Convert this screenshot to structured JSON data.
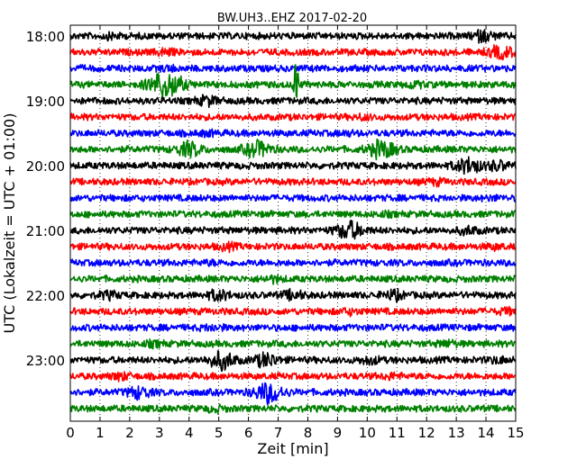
{
  "chart_data": {
    "type": "line",
    "title": "BW.UH3..EHZ 2017-02-20",
    "xlabel": "Zeit  [min]",
    "ylabel": "UTC (Lokalzeit = UTC + 01:00)",
    "xlim": [
      0,
      15
    ],
    "x_ticks": [
      "0",
      "1",
      "2",
      "3",
      "4",
      "5",
      "6",
      "7",
      "8",
      "9",
      "10",
      "11",
      "12",
      "13",
      "14",
      "15"
    ],
    "y_ticks": [
      "18:00",
      "19:00",
      "20:00",
      "21:00",
      "22:00",
      "23:00"
    ],
    "line_interval_minutes": 15,
    "start_time": "18:00",
    "end_time": "24:00",
    "grid": "vertical dotted",
    "trace_colors": [
      "#000000",
      "#ff0000",
      "#0000ff",
      "#008000"
    ],
    "traces": [
      {
        "start": "18:00",
        "color": "#000000",
        "events": [
          {
            "t": 1.4,
            "a": 1.5
          },
          {
            "t": 13.9,
            "a": 2.2
          }
        ]
      },
      {
        "start": "18:15",
        "color": "#ff0000",
        "events": [
          {
            "t": 3.2,
            "a": 1.6
          },
          {
            "t": 14.5,
            "a": 2.5
          }
        ]
      },
      {
        "start": "18:30",
        "color": "#0000ff",
        "events": [
          {
            "t": 3.3,
            "a": 1.4
          }
        ]
      },
      {
        "start": "18:45",
        "color": "#008000",
        "events": [
          {
            "t": 3.2,
            "a": 4.5
          },
          {
            "t": 7.6,
            "a": 9.0
          },
          {
            "t": 11.6,
            "a": 1.6
          }
        ]
      },
      {
        "start": "19:00",
        "color": "#000000",
        "events": [
          {
            "t": 4.6,
            "a": 2.0
          }
        ]
      },
      {
        "start": "19:15",
        "color": "#ff0000",
        "events": [
          {
            "t": 9.9,
            "a": 1.4
          }
        ]
      },
      {
        "start": "19:30",
        "color": "#0000ff",
        "events": [
          {
            "t": 4.6,
            "a": 1.4
          },
          {
            "t": 9.3,
            "a": 1.3
          }
        ]
      },
      {
        "start": "19:45",
        "color": "#008000",
        "events": [
          {
            "t": 4.0,
            "a": 2.8
          },
          {
            "t": 6.3,
            "a": 3.0
          },
          {
            "t": 10.5,
            "a": 3.2
          }
        ]
      },
      {
        "start": "20:00",
        "color": "#000000",
        "events": [
          {
            "t": 13.4,
            "a": 3.0
          },
          {
            "t": 14.4,
            "a": 2.0
          }
        ]
      },
      {
        "start": "20:15",
        "color": "#ff0000",
        "events": [
          {
            "t": 12.3,
            "a": 1.5
          }
        ]
      },
      {
        "start": "20:30",
        "color": "#0000ff",
        "events": [
          {
            "t": 14.2,
            "a": 1.3
          }
        ]
      },
      {
        "start": "20:45",
        "color": "#008000",
        "events": [
          {
            "t": 10.6,
            "a": 1.3
          }
        ]
      },
      {
        "start": "21:00",
        "color": "#000000",
        "events": [
          {
            "t": 9.4,
            "a": 3.2
          },
          {
            "t": 13.4,
            "a": 1.8
          }
        ]
      },
      {
        "start": "21:15",
        "color": "#ff0000",
        "events": [
          {
            "t": 5.3,
            "a": 1.6
          },
          {
            "t": 14.3,
            "a": 1.4
          }
        ]
      },
      {
        "start": "21:30",
        "color": "#0000ff",
        "events": [
          {
            "t": 4.7,
            "a": 1.3
          }
        ]
      },
      {
        "start": "21:45",
        "color": "#008000",
        "events": [
          {
            "t": 6.8,
            "a": 1.6
          }
        ]
      },
      {
        "start": "22:00",
        "color": "#000000",
        "events": [
          {
            "t": 1.3,
            "a": 1.7
          },
          {
            "t": 5.0,
            "a": 2.2
          },
          {
            "t": 7.5,
            "a": 2.0
          },
          {
            "t": 10.9,
            "a": 2.0
          }
        ]
      },
      {
        "start": "22:15",
        "color": "#ff0000",
        "events": [
          {
            "t": 9.4,
            "a": 1.5
          },
          {
            "t": 14.7,
            "a": 1.5
          }
        ]
      },
      {
        "start": "22:30",
        "color": "#0000ff",
        "events": [
          {
            "t": 4.8,
            "a": 1.5
          }
        ]
      },
      {
        "start": "22:45",
        "color": "#008000",
        "events": [
          {
            "t": 2.8,
            "a": 1.5
          },
          {
            "t": 12.7,
            "a": 1.6
          }
        ]
      },
      {
        "start": "23:00",
        "color": "#000000",
        "events": [
          {
            "t": 5.1,
            "a": 3.2
          },
          {
            "t": 6.6,
            "a": 2.6
          },
          {
            "t": 10.1,
            "a": 1.8
          },
          {
            "t": 14.4,
            "a": 1.6
          }
        ]
      },
      {
        "start": "23:15",
        "color": "#ff0000",
        "events": [
          {
            "t": 1.7,
            "a": 1.7
          },
          {
            "t": 10.8,
            "a": 1.5
          }
        ]
      },
      {
        "start": "23:30",
        "color": "#0000ff",
        "events": [
          {
            "t": 2.3,
            "a": 2.4
          },
          {
            "t": 6.7,
            "a": 3.6
          }
        ]
      },
      {
        "start": "23:45",
        "color": "#008000",
        "events": [
          {
            "t": 4.9,
            "a": 1.5
          }
        ]
      }
    ]
  }
}
